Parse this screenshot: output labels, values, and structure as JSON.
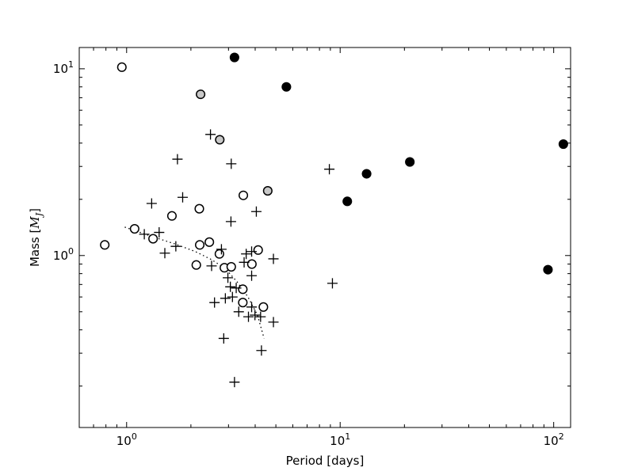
{
  "chart_data": {
    "type": "scatter",
    "title": "",
    "xlabel": "Period [days]",
    "ylabel": {
      "prefix": "Mass [",
      "symbol": "M",
      "subscript": "J",
      "suffix": "]"
    },
    "xscale": "log",
    "yscale": "log",
    "xlim": [
      0.6,
      120
    ],
    "ylim": [
      0.12,
      13
    ],
    "grid": false,
    "x_tick_labels": [
      {
        "value": 1,
        "base": "10",
        "exp": "0"
      },
      {
        "value": 10,
        "base": "10",
        "exp": "1"
      },
      {
        "value": 100,
        "base": "10",
        "exp": "2"
      }
    ],
    "y_tick_labels": [
      {
        "value": 1,
        "base": "10",
        "exp": "0"
      },
      {
        "value": 10,
        "base": "10",
        "exp": "1"
      }
    ],
    "series": [
      {
        "marker": "open-circle",
        "color": "#000000",
        "fill": "#ffffff",
        "points": [
          [
            0.95,
            10.2
          ],
          [
            0.79,
            1.14
          ],
          [
            1.09,
            1.39
          ],
          [
            1.33,
            1.23
          ],
          [
            1.63,
            1.63
          ],
          [
            2.19,
            1.78
          ],
          [
            2.2,
            1.14
          ],
          [
            2.44,
            1.18
          ],
          [
            2.12,
            0.89
          ],
          [
            2.72,
            1.02
          ],
          [
            2.87,
            0.86
          ],
          [
            3.09,
            0.87
          ],
          [
            3.52,
            2.1
          ],
          [
            3.86,
            0.9
          ],
          [
            4.13,
            1.07
          ],
          [
            3.5,
            0.66
          ],
          [
            3.5,
            0.56
          ],
          [
            4.37,
            0.53
          ]
        ]
      },
      {
        "marker": "gray-circle",
        "color": "#000000",
        "fill": "#c8c8c8",
        "points": [
          [
            2.22,
            7.3
          ],
          [
            2.73,
            4.17
          ],
          [
            4.58,
            2.22
          ]
        ]
      },
      {
        "marker": "filled-circle",
        "color": "#000000",
        "fill": "#000000",
        "points": [
          [
            3.2,
            11.5
          ],
          [
            5.6,
            8.0
          ],
          [
            10.8,
            1.95
          ],
          [
            13.3,
            2.74
          ],
          [
            21.2,
            3.17
          ],
          [
            94.0,
            0.84
          ],
          [
            111.0,
            3.95
          ]
        ]
      },
      {
        "marker": "plus",
        "color": "#000000",
        "points": [
          [
            2.47,
            4.45
          ],
          [
            1.73,
            3.28
          ],
          [
            3.09,
            3.1
          ],
          [
            1.31,
            1.9
          ],
          [
            1.83,
            2.05
          ],
          [
            3.08,
            1.52
          ],
          [
            4.05,
            1.72
          ],
          [
            1.21,
            1.3
          ],
          [
            1.42,
            1.33
          ],
          [
            1.7,
            1.12
          ],
          [
            1.51,
            1.03
          ],
          [
            2.5,
            0.88
          ],
          [
            2.78,
            1.08
          ],
          [
            3.63,
            1.02
          ],
          [
            3.85,
            1.05
          ],
          [
            4.87,
            0.96
          ],
          [
            3.55,
            0.92
          ],
          [
            3.85,
            0.78
          ],
          [
            2.98,
            0.76
          ],
          [
            3.06,
            0.68
          ],
          [
            3.26,
            0.67
          ],
          [
            3.13,
            0.6
          ],
          [
            2.9,
            0.59
          ],
          [
            2.58,
            0.56
          ],
          [
            3.35,
            0.5
          ],
          [
            3.72,
            0.47
          ],
          [
            3.85,
            0.53
          ],
          [
            3.99,
            0.48
          ],
          [
            4.24,
            0.47
          ],
          [
            4.87,
            0.44
          ],
          [
            9.2,
            0.71
          ],
          [
            8.9,
            2.9
          ],
          [
            2.85,
            0.36
          ],
          [
            4.28,
            0.31
          ],
          [
            3.2,
            0.21
          ]
        ]
      }
    ],
    "fit_line": {
      "style": "dotted",
      "color": "#000000",
      "points": [
        [
          0.98,
          1.42
        ],
        [
          1.3,
          1.27
        ],
        [
          1.7,
          1.15
        ],
        [
          2.1,
          1.05
        ],
        [
          2.5,
          0.95
        ],
        [
          2.9,
          0.85
        ],
        [
          3.3,
          0.72
        ],
        [
          3.7,
          0.6
        ],
        [
          4.1,
          0.48
        ],
        [
          4.4,
          0.36
        ]
      ]
    }
  }
}
